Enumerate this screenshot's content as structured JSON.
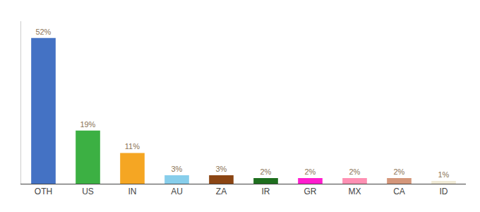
{
  "chart_data": {
    "type": "bar",
    "categories": [
      "OTH",
      "US",
      "IN",
      "AU",
      "ZA",
      "IR",
      "GR",
      "MX",
      "CA",
      "ID"
    ],
    "values": [
      52,
      19,
      11,
      3,
      3,
      2,
      2,
      2,
      2,
      1
    ],
    "value_labels": [
      "52%",
      "19%",
      "11%",
      "3%",
      "3%",
      "2%",
      "2%",
      "2%",
      "2%",
      "1%"
    ],
    "colors": [
      "#4472c4",
      "#3cb043",
      "#f5a623",
      "#87ceeb",
      "#8b4513",
      "#1e6e1e",
      "#ff1dce",
      "#ff90b3",
      "#d4967a",
      "#f0ead6"
    ],
    "data_labels": true,
    "ylim": [
      0,
      58
    ],
    "tick_labels": "x",
    "grid": false
  }
}
